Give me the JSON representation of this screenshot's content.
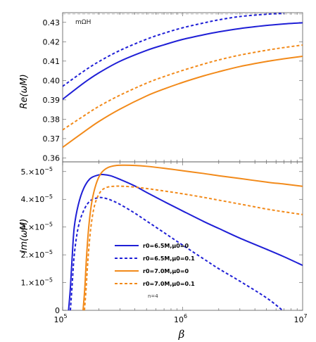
{
  "chart_data": [
    {
      "type": "line",
      "ylabel": "Re(ωM)",
      "xscale": "log",
      "xlim": [
        100000,
        10000000
      ],
      "ylim": [
        0.358,
        0.435
      ],
      "yticks": [
        0.36,
        0.37,
        0.38,
        0.39,
        0.4,
        0.41,
        0.42,
        0.43
      ],
      "ytick_labels": [
        "0.36",
        "0.37",
        "0.38",
        "0.39",
        "0.40",
        "0.41",
        "0.42",
        "0.43"
      ],
      "reference_line": {
        "label": "mΩH",
        "y": 0.4343,
        "color": "#bbbbbb",
        "style": "dashed"
      },
      "series": [
        {
          "color": "#1f1fd6",
          "dash": "solid",
          "x": [
            100000,
            150000,
            200000,
            300000,
            500000,
            700000,
            1000000,
            1500000,
            2000000,
            3000000,
            5000000,
            7000000,
            10000000
          ],
          "y": [
            0.3903,
            0.3987,
            0.4039,
            0.4099,
            0.4155,
            0.4184,
            0.4212,
            0.4236,
            0.4251,
            0.4268,
            0.4284,
            0.4292,
            0.4298
          ]
        },
        {
          "color": "#1f1fd6",
          "dash": "dashed",
          "x": [
            100000,
            150000,
            200000,
            300000,
            500000,
            700000,
            1000000,
            1500000,
            2000000,
            3000000,
            5000000,
            7000000
          ],
          "y": [
            0.397,
            0.4048,
            0.4097,
            0.4155,
            0.4213,
            0.4244,
            0.4272,
            0.4297,
            0.4313,
            0.433,
            0.4342,
            0.4346
          ]
        },
        {
          "color": "#f28a1a",
          "dash": "solid",
          "x": [
            100000,
            150000,
            200000,
            300000,
            500000,
            700000,
            1000000,
            1500000,
            2000000,
            3000000,
            5000000,
            7000000,
            10000000
          ],
          "y": [
            0.3655,
            0.3734,
            0.3788,
            0.3852,
            0.392,
            0.3956,
            0.399,
            0.4024,
            0.4045,
            0.4072,
            0.4098,
            0.4112,
            0.4125
          ]
        },
        {
          "color": "#f28a1a",
          "dash": "dashed",
          "x": [
            100000,
            150000,
            200000,
            300000,
            500000,
            700000,
            1000000,
            1500000,
            2000000,
            3000000,
            5000000,
            7000000,
            10000000
          ],
          "y": [
            0.3745,
            0.3817,
            0.3866,
            0.3924,
            0.3986,
            0.402,
            0.4052,
            0.4085,
            0.4106,
            0.4131,
            0.4156,
            0.417,
            0.4183
          ]
        }
      ]
    },
    {
      "type": "line",
      "ylabel": "Im(ωM)",
      "xlabel": "β",
      "xscale": "log",
      "xlim": [
        100000,
        10000000
      ],
      "ylim": [
        0,
        5.35e-05
      ],
      "yticks": [
        0,
        1e-05,
        2e-05,
        3e-05,
        4e-05,
        5e-05
      ],
      "ytick_labels": [
        {
          "text": "0",
          "sup": ""
        },
        {
          "text": "1.×10",
          "sup": "−5"
        },
        {
          "text": "2.×10",
          "sup": "−5"
        },
        {
          "text": "3.×10",
          "sup": "−5"
        },
        {
          "text": "4.×10",
          "sup": "−5"
        },
        {
          "text": "5.×10",
          "sup": "−5"
        }
      ],
      "xtick_labels": [
        {
          "value": 100000,
          "base": "10",
          "exp": "5"
        },
        {
          "value": 1000000,
          "base": "10",
          "exp": "6"
        },
        {
          "value": 10000000,
          "base": "10",
          "exp": "7"
        }
      ],
      "legend": {
        "position": "center",
        "entries": [
          {
            "label": "r0=6.5M,μ0=0",
            "color": "#1f1fd6",
            "dash": "solid"
          },
          {
            "label": "r0=6.5M,μ0=0.1",
            "color": "#1f1fd6",
            "dash": "dashed"
          },
          {
            "label": "r0=7.0M,μ0=0",
            "color": "#f28a1a",
            "dash": "solid"
          },
          {
            "label": "r0=7.0M,μ0=0.1",
            "color": "#f28a1a",
            "dash": "dashed"
          }
        ],
        "note": "n=4"
      },
      "series": [
        {
          "color": "#1f1fd6",
          "dash": "solid",
          "x": [
            112000,
            116000,
            120000,
            125000,
            135000,
            150000,
            170000,
            200000,
            220000,
            250000,
            300000,
            400000,
            500000,
            700000,
            1000000,
            1500000,
            2000000,
            3000000,
            5000000,
            7000000,
            10000000
          ],
          "y": [
            0,
            8e-06,
            1.9e-05,
            3e-05,
            3.8e-05,
            4.4e-05,
            4.75e-05,
            4.88e-05,
            4.89e-05,
            4.85e-05,
            4.72e-05,
            4.48e-05,
            4.25e-05,
            3.92e-05,
            3.58e-05,
            3.2e-05,
            2.95e-05,
            2.6e-05,
            2.2e-05,
            1.93e-05,
            1.62e-05
          ]
        },
        {
          "color": "#1f1fd6",
          "dash": "dashed",
          "x": [
            116000,
            120000,
            125000,
            135000,
            150000,
            170000,
            200000,
            220000,
            250000,
            300000,
            400000,
            500000,
            700000,
            1000000,
            1500000,
            2000000,
            3000000,
            5000000,
            6800000
          ],
          "y": [
            0,
            9e-06,
            2e-05,
            3e-05,
            3.6e-05,
            3.95e-05,
            4.06e-05,
            4.05e-05,
            3.98e-05,
            3.82e-05,
            3.5e-05,
            3.22e-05,
            2.8e-05,
            2.35e-05,
            1.85e-05,
            1.5e-05,
            1.05e-05,
            4.5e-06,
            0
          ]
        },
        {
          "color": "#f28a1a",
          "dash": "solid",
          "x": [
            148000,
            153000,
            158000,
            165000,
            175000,
            190000,
            210000,
            240000,
            280000,
            330000,
            400000,
            500000,
            700000,
            1000000,
            1500000,
            2000000,
            3000000,
            5000000,
            7000000,
            10000000
          ],
          "y": [
            0,
            8e-06,
            1.9e-05,
            3e-05,
            3.9e-05,
            4.55e-05,
            4.95e-05,
            5.15e-05,
            5.22e-05,
            5.23e-05,
            5.22e-05,
            5.19e-05,
            5.12e-05,
            5.03e-05,
            4.93e-05,
            4.85e-05,
            4.75e-05,
            4.62e-05,
            4.55e-05,
            4.47e-05
          ]
        },
        {
          "color": "#f28a1a",
          "dash": "dashed",
          "x": [
            152000,
            157000,
            163000,
            172000,
            185000,
            205000,
            230000,
            270000,
            320000,
            400000,
            500000,
            700000,
            1000000,
            1500000,
            2000000,
            3000000,
            5000000,
            7000000,
            10000000
          ],
          "y": [
            0,
            8e-06,
            1.9e-05,
            3e-05,
            3.8e-05,
            4.25e-05,
            4.42e-05,
            4.47e-05,
            4.47e-05,
            4.44e-05,
            4.39e-05,
            4.3e-05,
            4.2e-05,
            4.07e-05,
            3.97e-05,
            3.83e-05,
            3.65e-05,
            3.55e-05,
            3.45e-05
          ]
        }
      ]
    }
  ]
}
